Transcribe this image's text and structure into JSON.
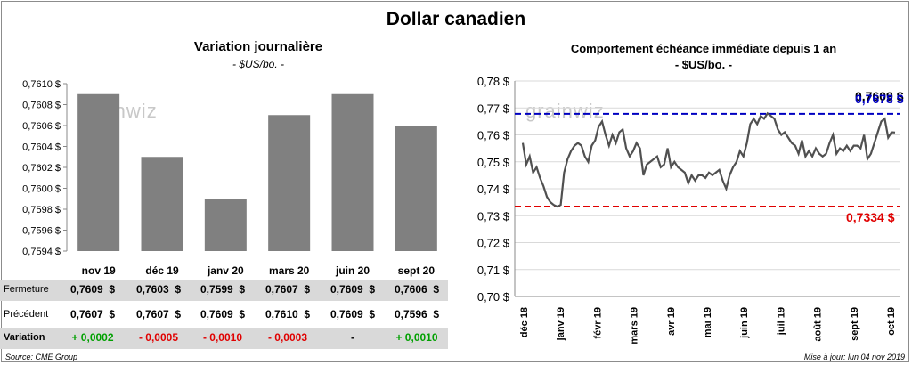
{
  "title": "Dollar canadien",
  "left": {
    "title": "Variation  journalière",
    "subtitle": "- $US/bo. -"
  },
  "right": {
    "title": "Comportement échéance immédiate depuis 1 an",
    "subtitle": "- $US/bo. -"
  },
  "watermark": "grainwiz",
  "table": {
    "rows": [
      {
        "label": "Fermeture",
        "values": [
          "0,7609  $",
          "0,7603  $",
          "0,7599  $",
          "0,7607  $",
          "0,7609  $",
          "0,7606  $"
        ]
      },
      {
        "label": "Précédent",
        "values": [
          "0,7607  $",
          "0,7607  $",
          "0,7609  $",
          "0,7610  $",
          "0,7609  $",
          "0,7596  $"
        ]
      },
      {
        "label": "Variation",
        "values": [
          "+ 0,0002",
          "- 0,0005",
          "- 0,0010",
          "- 0,0003",
          "-",
          "+ 0,0010"
        ]
      }
    ],
    "variation_colors": [
      "#00a000",
      "#e00000",
      "#e00000",
      "#e00000",
      "#000000",
      "#00a000"
    ]
  },
  "footer": {
    "source": "Source: CME Group",
    "updated": "Mise à jour: lun 04 nov 2019"
  },
  "colors": {
    "bar": "#808080",
    "upper_line": "#0000c0",
    "lower_line": "#e00000",
    "price_line": "#505050"
  },
  "chart_data": [
    {
      "type": "bar",
      "categories": [
        "nov 19",
        "déc 19",
        "janv 20",
        "mars 20",
        "juin 20",
        "sept 20"
      ],
      "values": [
        0.7609,
        0.7603,
        0.7599,
        0.7607,
        0.7609,
        0.7606
      ],
      "ylim": [
        0.7594,
        0.761
      ],
      "yticks": [
        "0,7594 $",
        "0,7596 $",
        "0,7598 $",
        "0,7600 $",
        "0,7602 $",
        "0,7604 $",
        "0,7606 $",
        "0,7608 $",
        "0,7610 $"
      ],
      "grid": false
    },
    {
      "type": "line",
      "x_labels": [
        "déc 18",
        "janv 19",
        "févr 19",
        "mars 19",
        "avr 19",
        "mai 19",
        "juin 19",
        "juil 19",
        "août 19",
        "sept 19",
        "oct 19"
      ],
      "values": [
        0.757,
        0.749,
        0.752,
        0.746,
        0.748,
        0.744,
        0.741,
        0.737,
        0.735,
        0.734,
        0.7334,
        0.734,
        0.746,
        0.751,
        0.754,
        0.756,
        0.757,
        0.756,
        0.752,
        0.75,
        0.756,
        0.758,
        0.763,
        0.765,
        0.76,
        0.756,
        0.76,
        0.757,
        0.761,
        0.762,
        0.755,
        0.752,
        0.754,
        0.757,
        0.755,
        0.745,
        0.749,
        0.75,
        0.751,
        0.752,
        0.748,
        0.749,
        0.755,
        0.748,
        0.75,
        0.748,
        0.747,
        0.746,
        0.742,
        0.745,
        0.743,
        0.745,
        0.745,
        0.744,
        0.746,
        0.745,
        0.746,
        0.747,
        0.743,
        0.74,
        0.745,
        0.748,
        0.75,
        0.754,
        0.752,
        0.757,
        0.764,
        0.766,
        0.764,
        0.767,
        0.766,
        0.768,
        0.767,
        0.766,
        0.762,
        0.76,
        0.761,
        0.759,
        0.757,
        0.756,
        0.753,
        0.758,
        0.752,
        0.754,
        0.752,
        0.755,
        0.753,
        0.752,
        0.753,
        0.757,
        0.76,
        0.753,
        0.755,
        0.754,
        0.756,
        0.754,
        0.756,
        0.756,
        0.755,
        0.76,
        0.751,
        0.753,
        0.757,
        0.761,
        0.765,
        0.766,
        0.759,
        0.761,
        0.7609
      ],
      "ylim": [
        0.7,
        0.78
      ],
      "yticks": [
        "0,70 $",
        "0,71 $",
        "0,72 $",
        "0,73 $",
        "0,74 $",
        "0,75 $",
        "0,76 $",
        "0,77 $",
        "0,78 $"
      ],
      "reference_lines": [
        {
          "label": "0,7678 $",
          "value": 0.7678,
          "style": "dashed",
          "color": "#0000c0"
        },
        {
          "label": "0,7334 $",
          "value": 0.7334,
          "style": "dashed",
          "color": "#e00000"
        }
      ],
      "last_value_label": "0,7609 $",
      "grid": true
    }
  ]
}
